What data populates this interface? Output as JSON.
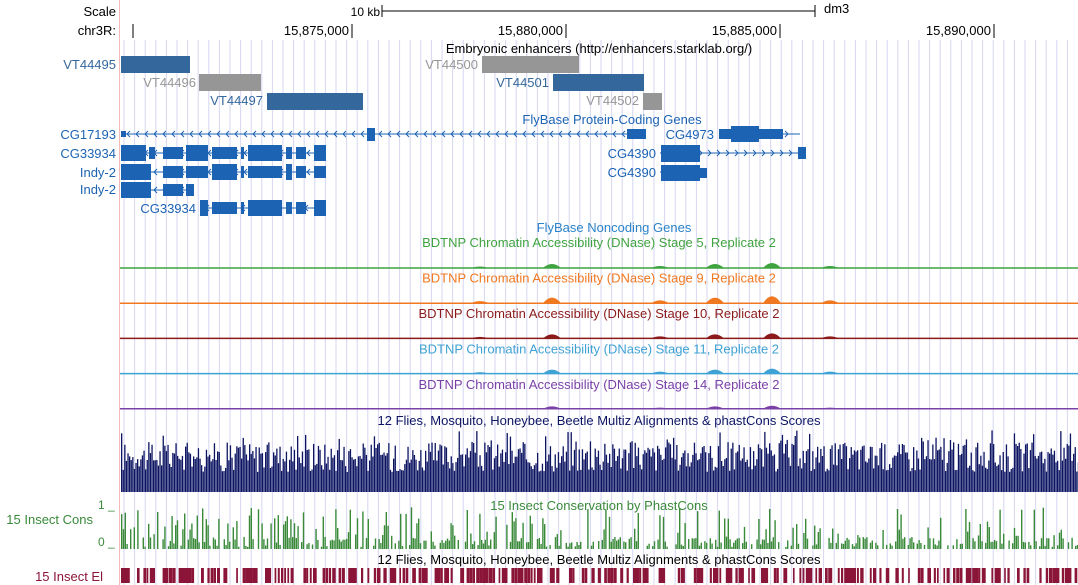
{
  "ruler": {
    "scale_label": "Scale",
    "chrom_label": "chr3R:",
    "scale_bar_label": "10 kb",
    "assembly": "dm3",
    "ticks": [
      "15,875,000",
      "15,880,000",
      "15,885,000",
      "15,890,000"
    ]
  },
  "tracks": {
    "enhancers": {
      "title": "Embryonic enhancers (http://enhancers.starklab.org/)",
      "items": [
        {
          "label": "VT44495",
          "color": "#34679b"
        },
        {
          "label": "VT44496",
          "color": "#969696"
        },
        {
          "label": "VT44497",
          "color": "#34679b"
        },
        {
          "label": "VT44500",
          "color": "#969696"
        },
        {
          "label": "VT44501",
          "color": "#34679b"
        },
        {
          "label": "VT44502",
          "color": "#969696"
        }
      ]
    },
    "coding_genes": {
      "title": "FlyBase Protein-Coding Genes",
      "color": "#1c63b3",
      "labels": [
        "CG17193",
        "CG33934",
        "Indy-2",
        "Indy-2",
        "CG33934",
        "CG4973",
        "CG4390",
        "CG4390"
      ]
    },
    "noncoding_genes": {
      "title": "FlyBase Noncoding Genes",
      "color": "#2b82c9"
    },
    "dnase": [
      {
        "title": "BDTNP Chromatin Accessibility (DNase) Stage 5, Replicate 2",
        "color": "#3fa33f"
      },
      {
        "title": "BDTNP Chromatin Accessibility (DNase) Stage 9, Replicate 2",
        "color": "#f07820"
      },
      {
        "title": "BDTNP Chromatin Accessibility (DNase) Stage 10, Replicate 2",
        "color": "#8c1a1a"
      },
      {
        "title": "BDTNP Chromatin Accessibility (DNase) Stage 11, Replicate 2",
        "color": "#3fa2d4"
      },
      {
        "title": "BDTNP Chromatin Accessibility (DNase) Stage 14, Replicate 2",
        "color": "#7b40a8"
      }
    ],
    "multiz": {
      "title": "12 Flies, Mosquito, Honeybee, Beetle Multiz Alignments & phastCons Scores",
      "color": "#0d1563"
    },
    "insect_cons": {
      "title": "15 Insect Conservation by PhastCons",
      "side_label": "15 Insect Cons",
      "y_max": "1 _",
      "y_min": "0 _",
      "color": "#3a8a3a"
    },
    "insect_el": {
      "title": "12 Flies, Mosquito, Honeybee, Beetle Multiz Alignments & phastCons Scores",
      "side_label": "15 Insect El",
      "color": "#8b1538"
    }
  }
}
